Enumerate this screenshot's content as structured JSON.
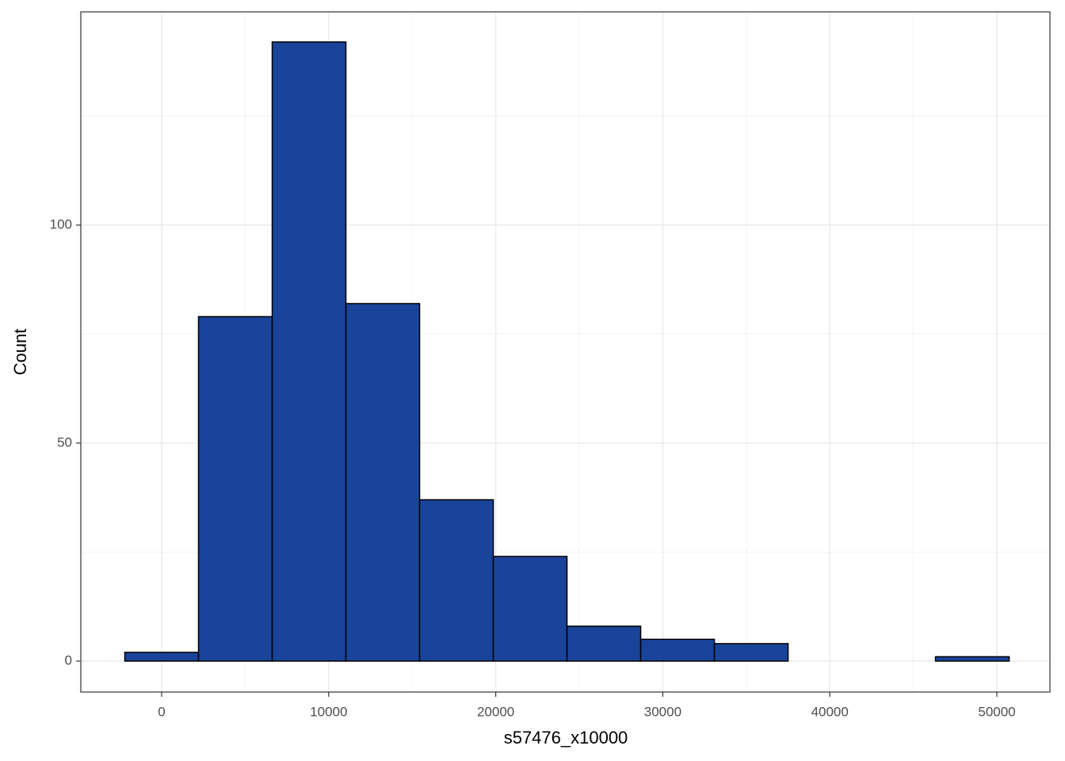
{
  "chart_data": {
    "type": "histogram",
    "x_label": "s57476_x10000",
    "y_label": "Count",
    "bins": [
      -2206,
      2206,
      6618,
      11030,
      15442,
      19854,
      24266,
      28678,
      33090,
      37502,
      41914,
      46326,
      50738
    ],
    "counts": [
      2,
      79,
      142,
      82,
      37,
      24,
      8,
      5,
      4,
      0,
      0,
      1
    ],
    "color": "#1a449a",
    "xlim": [
      -4839,
      53178
    ],
    "ylim": [
      -7.1,
      148.9
    ],
    "xticks": [
      0,
      10000,
      20000,
      30000,
      40000,
      50000
    ],
    "yticks": [
      0,
      50,
      100
    ],
    "xminorticks": [
      -5000,
      5000,
      15000,
      25000,
      35000,
      45000
    ],
    "yminorticks": [
      25,
      75,
      125
    ],
    "grid": true
  }
}
